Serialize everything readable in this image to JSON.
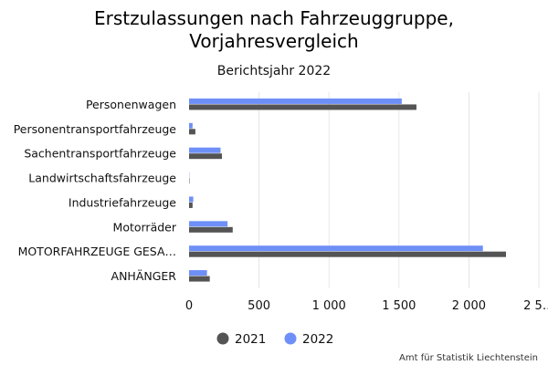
{
  "chart_data": {
    "type": "bar",
    "orientation": "horizontal",
    "title": "Erstzulassungen nach Fahrzeuggruppe, Vorjahresvergleich",
    "subtitle": "Berichtsjahr 2022",
    "categories": [
      "Personenwagen",
      "Personentransportfahrzeuge",
      "Sachentransportfahrzeuge",
      "Landwirtschaftsfahrzeuge",
      "Industriefahrzeuge",
      "Motorräder",
      "MOTORFAHRZEUGE GESA…",
      "ANHÄNGER"
    ],
    "series": [
      {
        "name": "2021",
        "color": "#545454",
        "values": [
          1625,
          45,
          235,
          3,
          25,
          312,
          2265,
          148
        ]
      },
      {
        "name": "2022",
        "color": "#6e8ff7",
        "values": [
          1520,
          25,
          225,
          2,
          30,
          275,
          2100,
          128
        ]
      }
    ],
    "xlim": [
      0,
      2500
    ],
    "xticks": [
      0,
      500,
      1000,
      1500,
      2000,
      2500
    ],
    "xtick_labels": [
      "0",
      "500",
      "1 000",
      "1 500",
      "2 000",
      "2 5…"
    ],
    "grid": true,
    "legend_position": "bottom",
    "credits": "Amt für Statistik Liechtenstein"
  }
}
